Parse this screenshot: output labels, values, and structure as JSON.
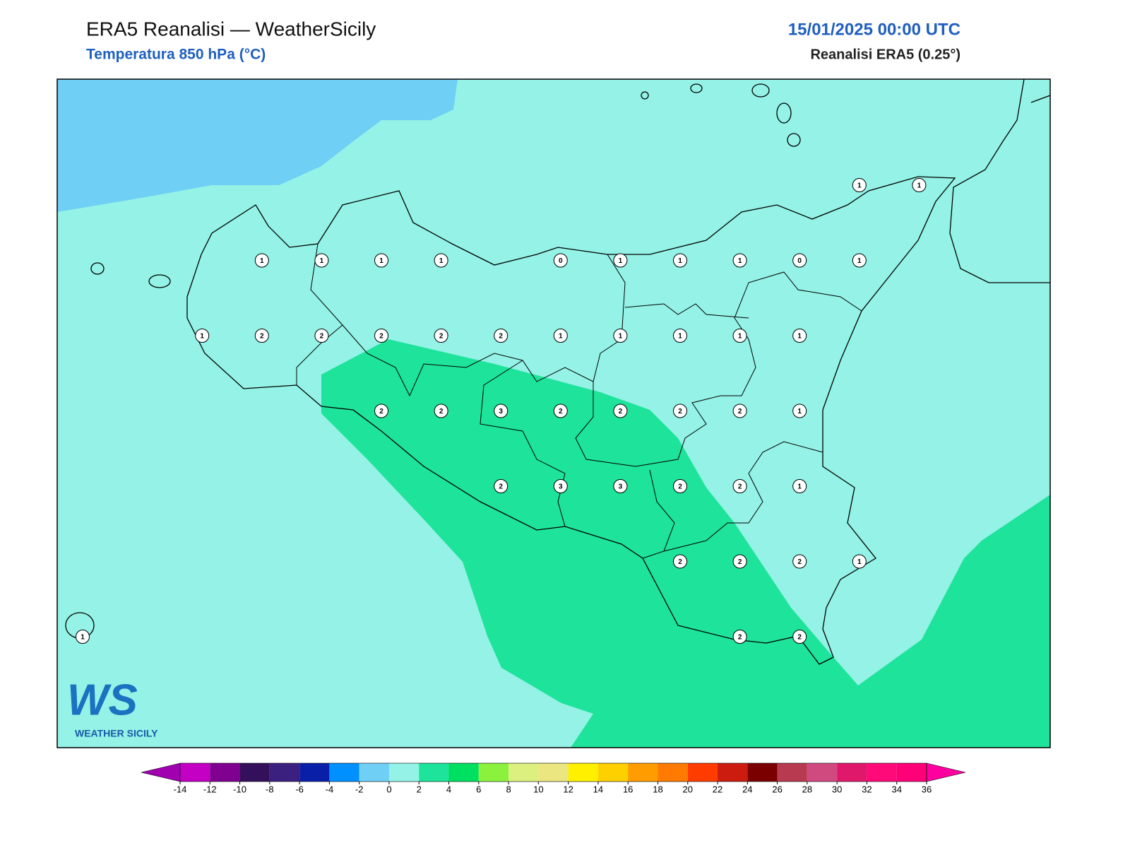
{
  "header": {
    "title": "ERA5 Reanalisi — WeatherSicily",
    "subtitle": "Temperatura 850 hPa (°C)",
    "date": "15/01/2025 00:00 UTC",
    "source": "Reanalisi ERA5 (0.25°)"
  },
  "stations": {
    "rows": [
      [
        null,
        null,
        null,
        null,
        null,
        null,
        null,
        null,
        null,
        null,
        null,
        null,
        null,
        1,
        1
      ],
      [
        null,
        null,
        null,
        1,
        1,
        1,
        1,
        null,
        0,
        1,
        1,
        1,
        0,
        1,
        null
      ],
      [
        null,
        null,
        1,
        2,
        2,
        2,
        2,
        2,
        1,
        1,
        1,
        1,
        1,
        null,
        null
      ],
      [
        null,
        null,
        null,
        null,
        null,
        2,
        2,
        3,
        2,
        2,
        2,
        2,
        1,
        null,
        null
      ],
      [
        null,
        null,
        null,
        null,
        null,
        null,
        null,
        2,
        3,
        3,
        2,
        2,
        1,
        null,
        null
      ],
      [
        null,
        null,
        null,
        null,
        null,
        null,
        null,
        null,
        null,
        null,
        2,
        2,
        2,
        1,
        null
      ],
      [
        1,
        null,
        null,
        null,
        null,
        null,
        null,
        null,
        null,
        null,
        null,
        2,
        2,
        null,
        null
      ]
    ]
  },
  "colorbar": {
    "ticks": [
      -14,
      -12,
      -10,
      -8,
      -6,
      -4,
      -2,
      0,
      2,
      4,
      6,
      8,
      10,
      12,
      14,
      16,
      18,
      20,
      22,
      24,
      26,
      28,
      30,
      32,
      34,
      36
    ],
    "colors": [
      "#a000b0",
      "#c400c4",
      "#800090",
      "#34105a",
      "#3c2080",
      "#0a1fa8",
      "#0090ff",
      "#6fcff5",
      "#94f2e6",
      "#1ee39a",
      "#00e060",
      "#8af23c",
      "#dcf080",
      "#ece680",
      "#fff000",
      "#ffd000",
      "#ff9c00",
      "#ff7a00",
      "#ff3c00",
      "#cc1c10",
      "#7a0000",
      "#b83a50",
      "#d04a80",
      "#e0186c",
      "#ff0a78",
      "#ff0078",
      "#ff00a0"
    ]
  },
  "logo": {
    "mark": "WS",
    "text": "WEATHER SICILY"
  }
}
